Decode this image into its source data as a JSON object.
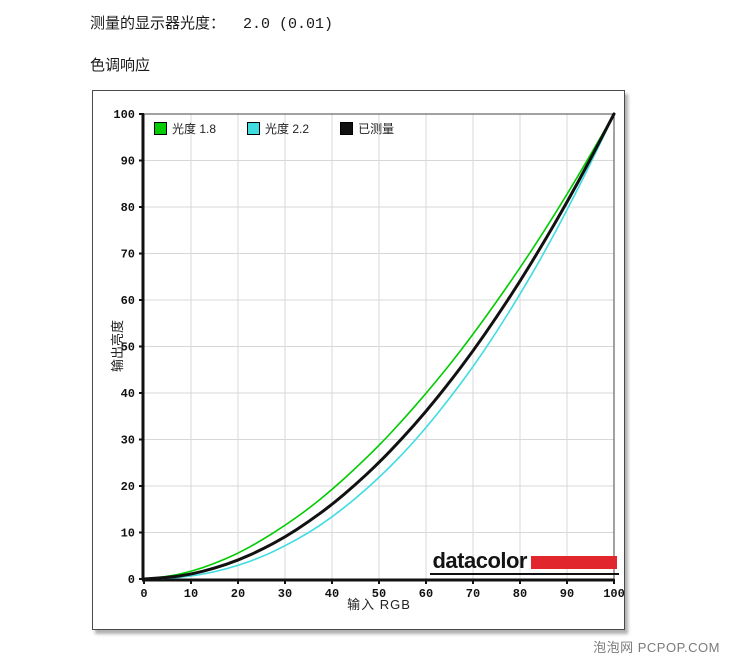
{
  "page": {
    "measured_gamma_label": "测量的显示器光度：  2.0 (0.01)",
    "section_title": "色调响应",
    "watermark": "泡泡网 PCPOP.COM"
  },
  "branding": {
    "logo_text": "datacolor",
    "logo_red_color": "#E2262E"
  },
  "chart_data": {
    "type": "line",
    "title": "色调响应",
    "xlabel": "输入 RGB",
    "ylabel": "输出亮度",
    "xlim": [
      0,
      100
    ],
    "ylim": [
      0,
      100
    ],
    "tick_step": 10,
    "grid": true,
    "legend_position": "top-inside",
    "grid_color": "#d8d8d8",
    "axis_color": "#111111",
    "x": [
      0,
      5,
      10,
      15,
      20,
      25,
      30,
      35,
      40,
      45,
      50,
      55,
      60,
      65,
      70,
      75,
      80,
      85,
      90,
      95,
      100
    ],
    "series": [
      {
        "name": "光度 1.8",
        "gamma": 1.8,
        "color": "#00CC00",
        "line_width": 1.6,
        "values": [
          0,
          0.5,
          1.6,
          3.3,
          5.5,
          8.3,
          11.5,
          15.1,
          19.2,
          23.8,
          28.7,
          34.1,
          39.9,
          46.0,
          52.6,
          59.6,
          66.9,
          74.6,
          82.7,
          91.2,
          100
        ]
      },
      {
        "name": "光度 2.2",
        "gamma": 2.2,
        "color": "#3FDCE2",
        "line_width": 1.6,
        "values": [
          0,
          0.1,
          0.6,
          1.5,
          2.9,
          4.7,
          7.1,
          9.9,
          13.3,
          17.3,
          21.8,
          26.8,
          32.5,
          38.8,
          45.6,
          53.1,
          61.2,
          69.9,
          79.3,
          89.3,
          100
        ]
      },
      {
        "name": "已测量",
        "gamma": 2.0,
        "color": "#111111",
        "line_width": 3,
        "values": [
          0,
          0.3,
          1.0,
          2.3,
          4.0,
          6.3,
          9.0,
          12.3,
          16.0,
          20.3,
          25.0,
          30.3,
          36.0,
          42.3,
          49.0,
          56.3,
          64.0,
          72.3,
          81.0,
          90.3,
          100
        ]
      }
    ]
  }
}
